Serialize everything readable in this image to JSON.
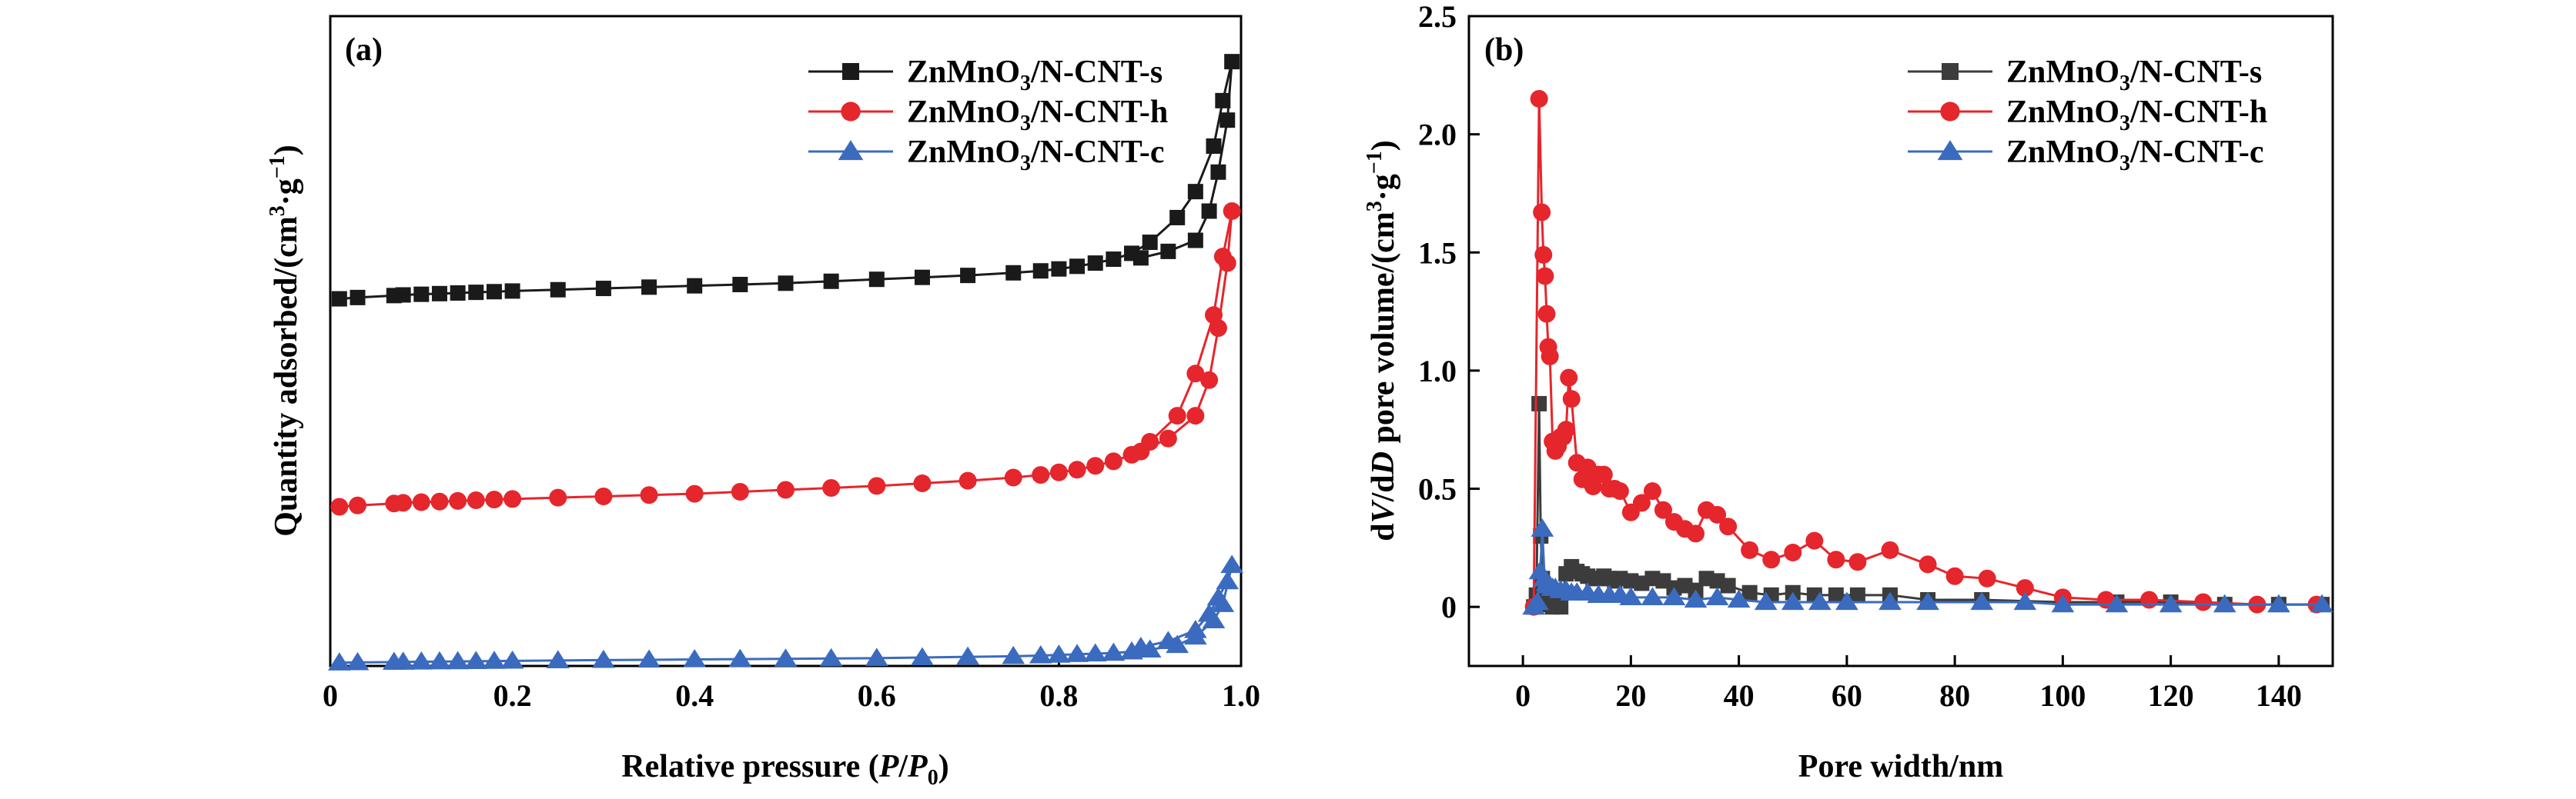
{
  "chart_data": [
    {
      "type": "line",
      "panel_label": "(a)",
      "xlabel": {
        "pre": "Relative pressure (",
        "i1": "P",
        "mid": "/",
        "i2": "P",
        "sub": "0",
        "post": ")"
      },
      "ylabel": {
        "pre": "Quantity adsorbed/(cm",
        "sup": "3",
        "mid": "·g",
        "sup2": "−1",
        "post": ")"
      },
      "xlim": [
        0,
        1.0
      ],
      "ylim": [
        0,
        100
      ],
      "x_ticks": [
        0,
        0.2,
        0.4,
        0.6,
        0.8,
        1.0
      ],
      "x_tick_labels": [
        "0",
        "0.2",
        "0.4",
        "0.6",
        "0.8",
        "1.0"
      ],
      "y_axis_numbered": false,
      "legend_position": "top-right",
      "series": [
        {
          "name_main": "ZnMnO",
          "name_sub": "3",
          "name_tail": "/N-CNT-s",
          "color": "#1a1a1a",
          "marker": "square",
          "x": [
            0.01,
            0.03,
            0.07,
            0.08,
            0.1,
            0.12,
            0.14,
            0.16,
            0.18,
            0.2,
            0.25,
            0.3,
            0.35,
            0.4,
            0.45,
            0.5,
            0.55,
            0.6,
            0.65,
            0.7,
            0.75,
            0.78,
            0.8,
            0.82,
            0.84,
            0.86,
            0.88,
            0.9,
            0.93,
            0.95,
            0.97,
            0.98,
            0.99,
            0.985,
            0.975,
            0.965,
            0.95,
            0.92,
            0.89
          ],
          "y": [
            56.5,
            56.7,
            57.0,
            57.1,
            57.2,
            57.3,
            57.4,
            57.5,
            57.6,
            57.7,
            57.9,
            58.1,
            58.3,
            58.5,
            58.7,
            58.9,
            59.2,
            59.5,
            59.8,
            60.1,
            60.5,
            60.8,
            61.1,
            61.5,
            62.0,
            62.6,
            63.5,
            65.2,
            69.0,
            73.0,
            80.0,
            87.0,
            93.0,
            84.0,
            76.0,
            70.0,
            65.5,
            63.8,
            62.8
          ]
        },
        {
          "name_main": "ZnMnO",
          "name_sub": "3",
          "name_tail": "/N-CNT-h",
          "color": "#e5262c",
          "marker": "circle",
          "x": [
            0.01,
            0.03,
            0.07,
            0.08,
            0.1,
            0.12,
            0.14,
            0.16,
            0.18,
            0.2,
            0.25,
            0.3,
            0.35,
            0.4,
            0.45,
            0.5,
            0.55,
            0.6,
            0.65,
            0.7,
            0.75,
            0.78,
            0.8,
            0.82,
            0.84,
            0.86,
            0.88,
            0.9,
            0.93,
            0.95,
            0.97,
            0.98,
            0.99,
            0.985,
            0.975,
            0.965,
            0.95,
            0.92,
            0.89
          ],
          "y": [
            24.5,
            24.7,
            25.0,
            25.1,
            25.2,
            25.3,
            25.4,
            25.5,
            25.6,
            25.7,
            25.9,
            26.1,
            26.3,
            26.5,
            26.8,
            27.1,
            27.4,
            27.7,
            28.1,
            28.5,
            29.0,
            29.4,
            29.8,
            30.2,
            30.8,
            31.5,
            32.5,
            34.5,
            38.5,
            45.0,
            54.0,
            63.0,
            70.0,
            62.0,
            52.0,
            44.0,
            38.5,
            35.0,
            33.0
          ]
        },
        {
          "name_main": "ZnMnO",
          "name_sub": "3",
          "name_tail": "/N-CNT-c",
          "color": "#3b6bbf",
          "marker": "triangle",
          "x": [
            0.01,
            0.03,
            0.07,
            0.08,
            0.1,
            0.12,
            0.14,
            0.16,
            0.18,
            0.2,
            0.25,
            0.3,
            0.35,
            0.4,
            0.45,
            0.5,
            0.55,
            0.6,
            0.65,
            0.7,
            0.75,
            0.78,
            0.8,
            0.82,
            0.84,
            0.86,
            0.88,
            0.9,
            0.93,
            0.95,
            0.97,
            0.98,
            0.99,
            0.985,
            0.975,
            0.965,
            0.95,
            0.92,
            0.89
          ],
          "y": [
            0.5,
            0.55,
            0.6,
            0.62,
            0.65,
            0.68,
            0.7,
            0.72,
            0.75,
            0.78,
            0.85,
            0.9,
            0.95,
            1.0,
            1.05,
            1.1,
            1.15,
            1.2,
            1.3,
            1.4,
            1.5,
            1.6,
            1.7,
            1.8,
            1.9,
            2.0,
            2.2,
            2.5,
            3.2,
            4.5,
            7.0,
            9.5,
            15.5,
            13.0,
            10.5,
            8.0,
            5.5,
            3.8,
            2.9
          ]
        }
      ]
    },
    {
      "type": "line",
      "panel_label": "(b)",
      "xlabel": {
        "text": "Pore width/nm"
      },
      "ylabel": {
        "pre": "d",
        "i1": "V",
        "mid": "/d",
        "i2": "D",
        "post": " pore volume/(cm",
        "sup": "3",
        "mid2": "·g",
        "sup2": "−1",
        "end": ")"
      },
      "xlim": [
        -10,
        150
      ],
      "ylim": [
        -0.25,
        2.5
      ],
      "x_ticks": [
        0,
        20,
        40,
        60,
        80,
        100,
        120,
        140
      ],
      "x_tick_labels": [
        "0",
        "20",
        "40",
        "60",
        "80",
        "100",
        "120",
        "140"
      ],
      "y_ticks": [
        0,
        0.5,
        1.0,
        1.5,
        2.0,
        2.5
      ],
      "y_tick_labels": [
        "0",
        "0.5",
        "1.0",
        "1.5",
        "2.0",
        "2.5"
      ],
      "legend_position": "top-right",
      "series": [
        {
          "name_main": "ZnMnO",
          "name_sub": "3",
          "name_tail": "/N-CNT-s",
          "color": "#3c3c3c",
          "marker": "square",
          "x": [
            2,
            2.5,
            3,
            3.3,
            3.6,
            4,
            4.5,
            5,
            5.5,
            6,
            6.5,
            7,
            8,
            9,
            10,
            11,
            12,
            13,
            14,
            15,
            16,
            17,
            18,
            20,
            22,
            24,
            26,
            28,
            30,
            32,
            34,
            36,
            38,
            42,
            46,
            50,
            54,
            58,
            62,
            68,
            75,
            85,
            100,
            110,
            120,
            130,
            140,
            148
          ],
          "y": [
            0,
            0.05,
            0.86,
            0.3,
            0.12,
            0.06,
            0.02,
            0.01,
            0.0,
            0.01,
            0.02,
            0.0,
            0.14,
            0.17,
            0.15,
            0.14,
            0.13,
            0.12,
            0.12,
            0.13,
            0.12,
            0.11,
            0.12,
            0.11,
            0.1,
            0.12,
            0.11,
            0.08,
            0.09,
            0.07,
            0.12,
            0.11,
            0.09,
            0.06,
            0.05,
            0.06,
            0.05,
            0.05,
            0.05,
            0.05,
            0.03,
            0.03,
            0.02,
            0.02,
            0.02,
            0.01,
            0.01,
            0.01
          ]
        },
        {
          "name_main": "ZnMnO",
          "name_sub": "3",
          "name_tail": "/N-CNT-h",
          "color": "#e5262c",
          "marker": "circle",
          "x": [
            2,
            3,
            3.5,
            3.8,
            4.1,
            4.4,
            4.7,
            5,
            5.5,
            6,
            6.5,
            7,
            7.5,
            8,
            8.5,
            9,
            10,
            11,
            12,
            13,
            14,
            15,
            16,
            17,
            18,
            20,
            22,
            24,
            26,
            28,
            30,
            32,
            34,
            36,
            38,
            42,
            46,
            50,
            54,
            58,
            62,
            68,
            75,
            80,
            86,
            93,
            100,
            108,
            116,
            126,
            136,
            147
          ],
          "y": [
            0,
            2.15,
            1.67,
            1.49,
            1.4,
            1.24,
            1.1,
            1.06,
            0.7,
            0.66,
            0.68,
            0.72,
            0.72,
            0.75,
            0.97,
            0.88,
            0.61,
            0.54,
            0.59,
            0.51,
            0.56,
            0.56,
            0.5,
            0.5,
            0.49,
            0.4,
            0.44,
            0.49,
            0.41,
            0.36,
            0.33,
            0.31,
            0.41,
            0.39,
            0.34,
            0.24,
            0.2,
            0.23,
            0.28,
            0.2,
            0.19,
            0.24,
            0.18,
            0.13,
            0.12,
            0.08,
            0.04,
            0.03,
            0.03,
            0.02,
            0.01,
            0.01
          ]
        },
        {
          "name_main": "ZnMnO",
          "name_sub": "3",
          "name_tail": "/N-CNT-c",
          "color": "#3b6bbf",
          "marker": "triangle",
          "x": [
            2,
            2.7,
            3.2,
            3.6,
            4,
            4.5,
            5,
            5.5,
            6,
            7,
            8,
            9,
            10,
            12,
            14,
            16,
            18,
            20,
            24,
            28,
            32,
            36,
            40,
            45,
            50,
            55,
            60,
            68,
            75,
            85,
            93,
            100,
            110,
            120,
            130,
            140,
            148
          ],
          "y": [
            0,
            0.02,
            0.15,
            0.33,
            0.12,
            0.1,
            0.09,
            0.08,
            0.08,
            0.07,
            0.07,
            0.06,
            0.06,
            0.06,
            0.05,
            0.05,
            0.05,
            0.04,
            0.04,
            0.04,
            0.03,
            0.04,
            0.03,
            0.02,
            0.02,
            0.02,
            0.02,
            0.02,
            0.02,
            0.02,
            0.02,
            0.01,
            0.01,
            0.01,
            0.01,
            0.01,
            0.01
          ]
        }
      ]
    }
  ]
}
